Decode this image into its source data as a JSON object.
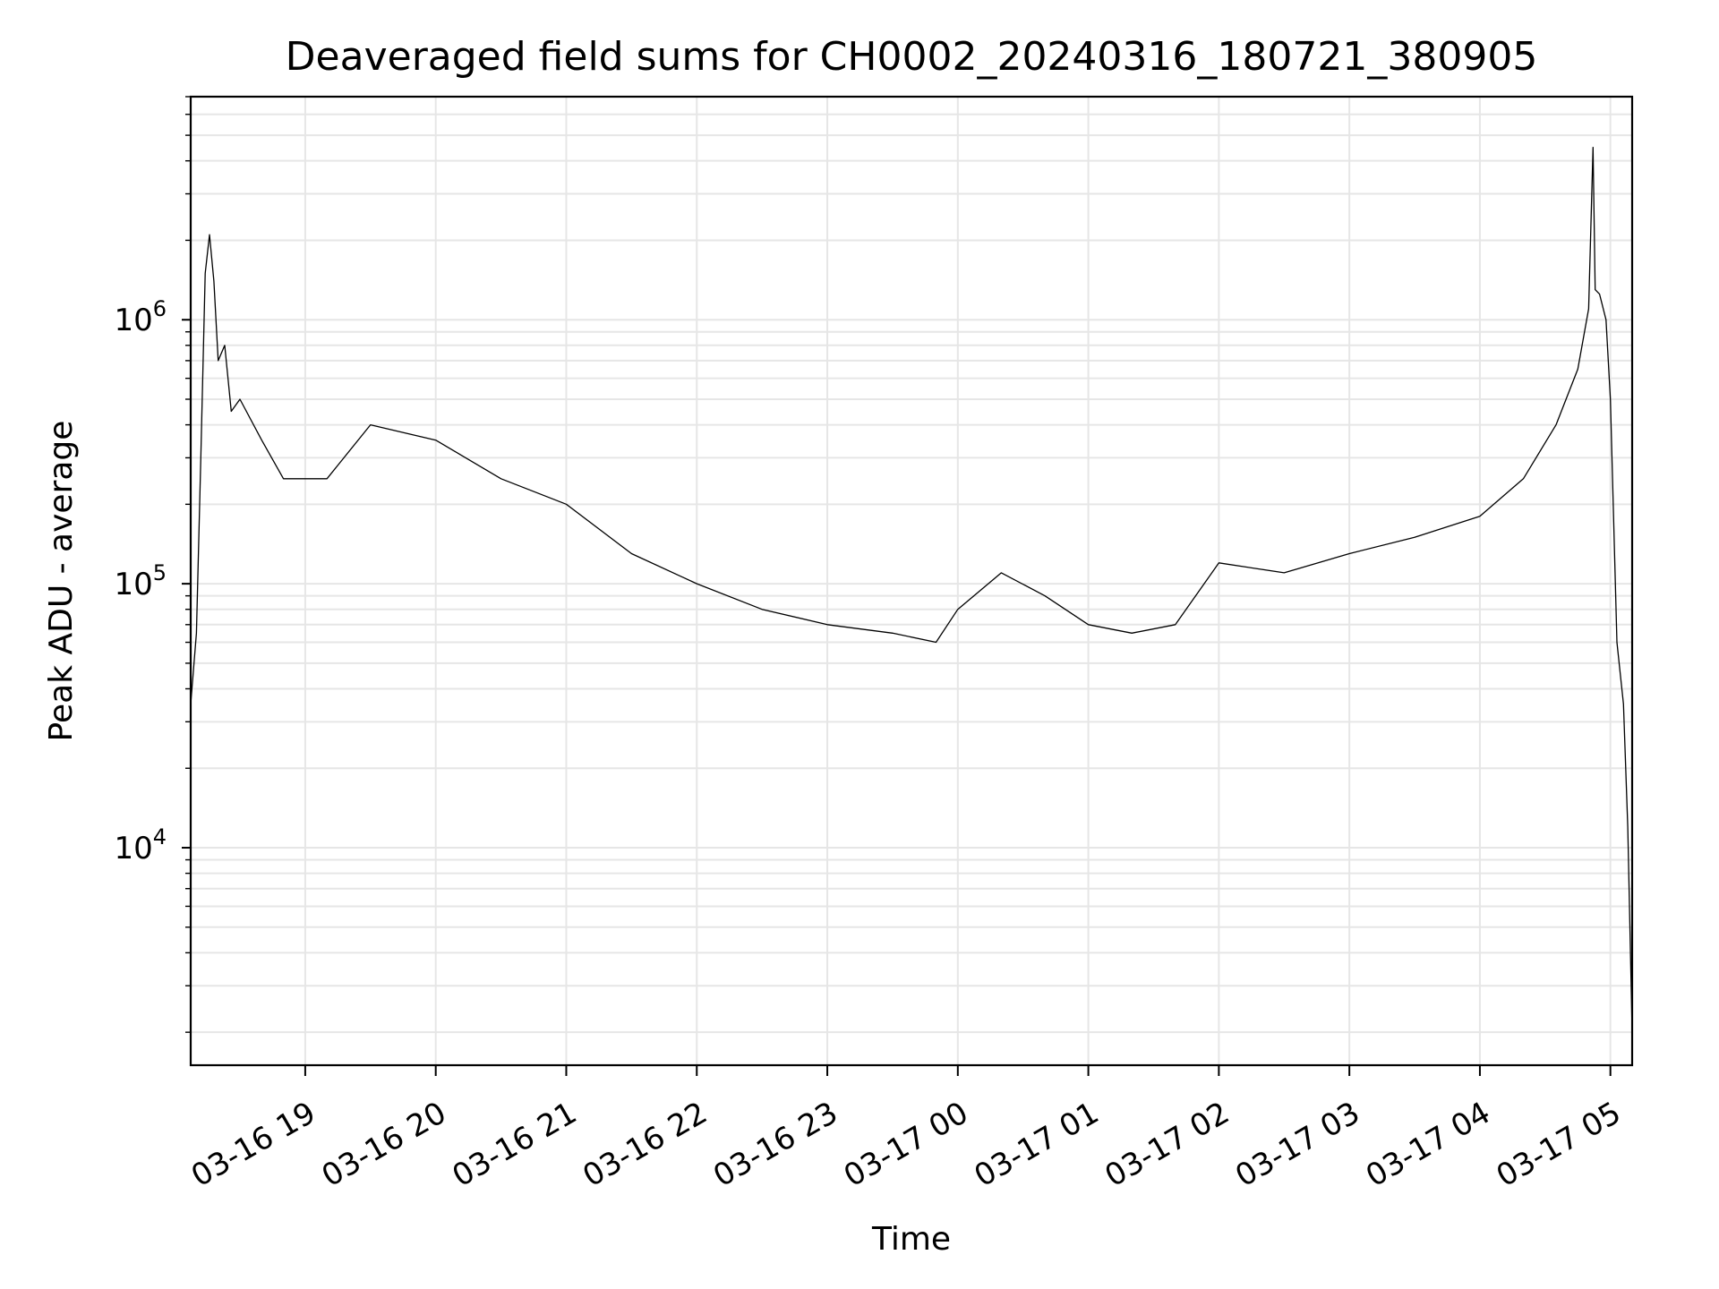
{
  "chart_data": {
    "type": "line",
    "title": "Deaveraged field sums for CH0002_20240316_180721_380905",
    "xlabel": "Time",
    "ylabel": "Peak ADU - average",
    "yscale": "log",
    "xlim": [
      "2024-03-16T18:07:21",
      "2024-03-17T05:10:00"
    ],
    "ylim": [
      1500,
      7000000
    ],
    "grid": true,
    "line_color": "#000000",
    "x_ticks": [
      {
        "t": "2024-03-16T19:00:00",
        "label": "03-16 19"
      },
      {
        "t": "2024-03-16T20:00:00",
        "label": "03-16 20"
      },
      {
        "t": "2024-03-16T21:00:00",
        "label": "03-16 21"
      },
      {
        "t": "2024-03-16T22:00:00",
        "label": "03-16 22"
      },
      {
        "t": "2024-03-16T23:00:00",
        "label": "03-16 23"
      },
      {
        "t": "2024-03-17T00:00:00",
        "label": "03-17 00"
      },
      {
        "t": "2024-03-17T01:00:00",
        "label": "03-17 01"
      },
      {
        "t": "2024-03-17T02:00:00",
        "label": "03-17 02"
      },
      {
        "t": "2024-03-17T03:00:00",
        "label": "03-17 03"
      },
      {
        "t": "2024-03-17T04:00:00",
        "label": "03-17 04"
      },
      {
        "t": "2024-03-17T05:00:00",
        "label": "03-17 05"
      }
    ],
    "y_ticks": [
      {
        "value": 10000,
        "base": "10",
        "exp": "4"
      },
      {
        "value": 100000,
        "base": "10",
        "exp": "5"
      },
      {
        "value": 1000000,
        "base": "10",
        "exp": "6"
      }
    ],
    "series": [
      {
        "x": [
          "2024-03-16T18:07:21",
          "2024-03-16T18:10:00",
          "2024-03-16T18:12:00",
          "2024-03-16T18:14:00",
          "2024-03-16T18:16:00",
          "2024-03-16T18:18:00",
          "2024-03-16T18:20:00",
          "2024-03-16T18:23:00",
          "2024-03-16T18:26:00",
          "2024-03-16T18:30:00",
          "2024-03-16T18:40:00",
          "2024-03-16T18:50:00",
          "2024-03-16T19:10:00",
          "2024-03-16T19:30:00",
          "2024-03-16T20:00:00",
          "2024-03-16T20:30:00",
          "2024-03-16T21:00:00",
          "2024-03-16T21:30:00",
          "2024-03-16T22:00:00",
          "2024-03-16T22:30:00",
          "2024-03-16T23:00:00",
          "2024-03-16T23:30:00",
          "2024-03-16T23:50:00",
          "2024-03-17T00:00:00",
          "2024-03-17T00:20:00",
          "2024-03-17T00:40:00",
          "2024-03-17T01:00:00",
          "2024-03-17T01:20:00",
          "2024-03-17T01:40:00",
          "2024-03-17T02:00:00",
          "2024-03-17T02:30:00",
          "2024-03-17T03:00:00",
          "2024-03-17T03:30:00",
          "2024-03-17T04:00:00",
          "2024-03-17T04:20:00",
          "2024-03-17T04:35:00",
          "2024-03-17T04:45:00",
          "2024-03-17T04:50:00",
          "2024-03-17T04:52:00",
          "2024-03-17T04:53:00",
          "2024-03-17T04:55:00",
          "2024-03-17T04:58:00",
          "2024-03-17T05:00:00",
          "2024-03-17T05:03:00",
          "2024-03-17T05:06:00",
          "2024-03-17T05:08:00",
          "2024-03-17T05:10:00"
        ],
        "y": [
          35000,
          65000,
          300000,
          1500000,
          2100000,
          1400000,
          700000,
          800000,
          450000,
          500000,
          350000,
          250000,
          250000,
          400000,
          350000,
          250000,
          200000,
          130000,
          100000,
          80000,
          70000,
          65000,
          60000,
          80000,
          110000,
          90000,
          70000,
          65000,
          70000,
          120000,
          110000,
          130000,
          150000,
          180000,
          250000,
          400000,
          650000,
          1100000,
          4500000,
          1300000,
          1250000,
          1000000,
          500000,
          60000,
          35000,
          12000,
          2000
        ]
      }
    ]
  }
}
